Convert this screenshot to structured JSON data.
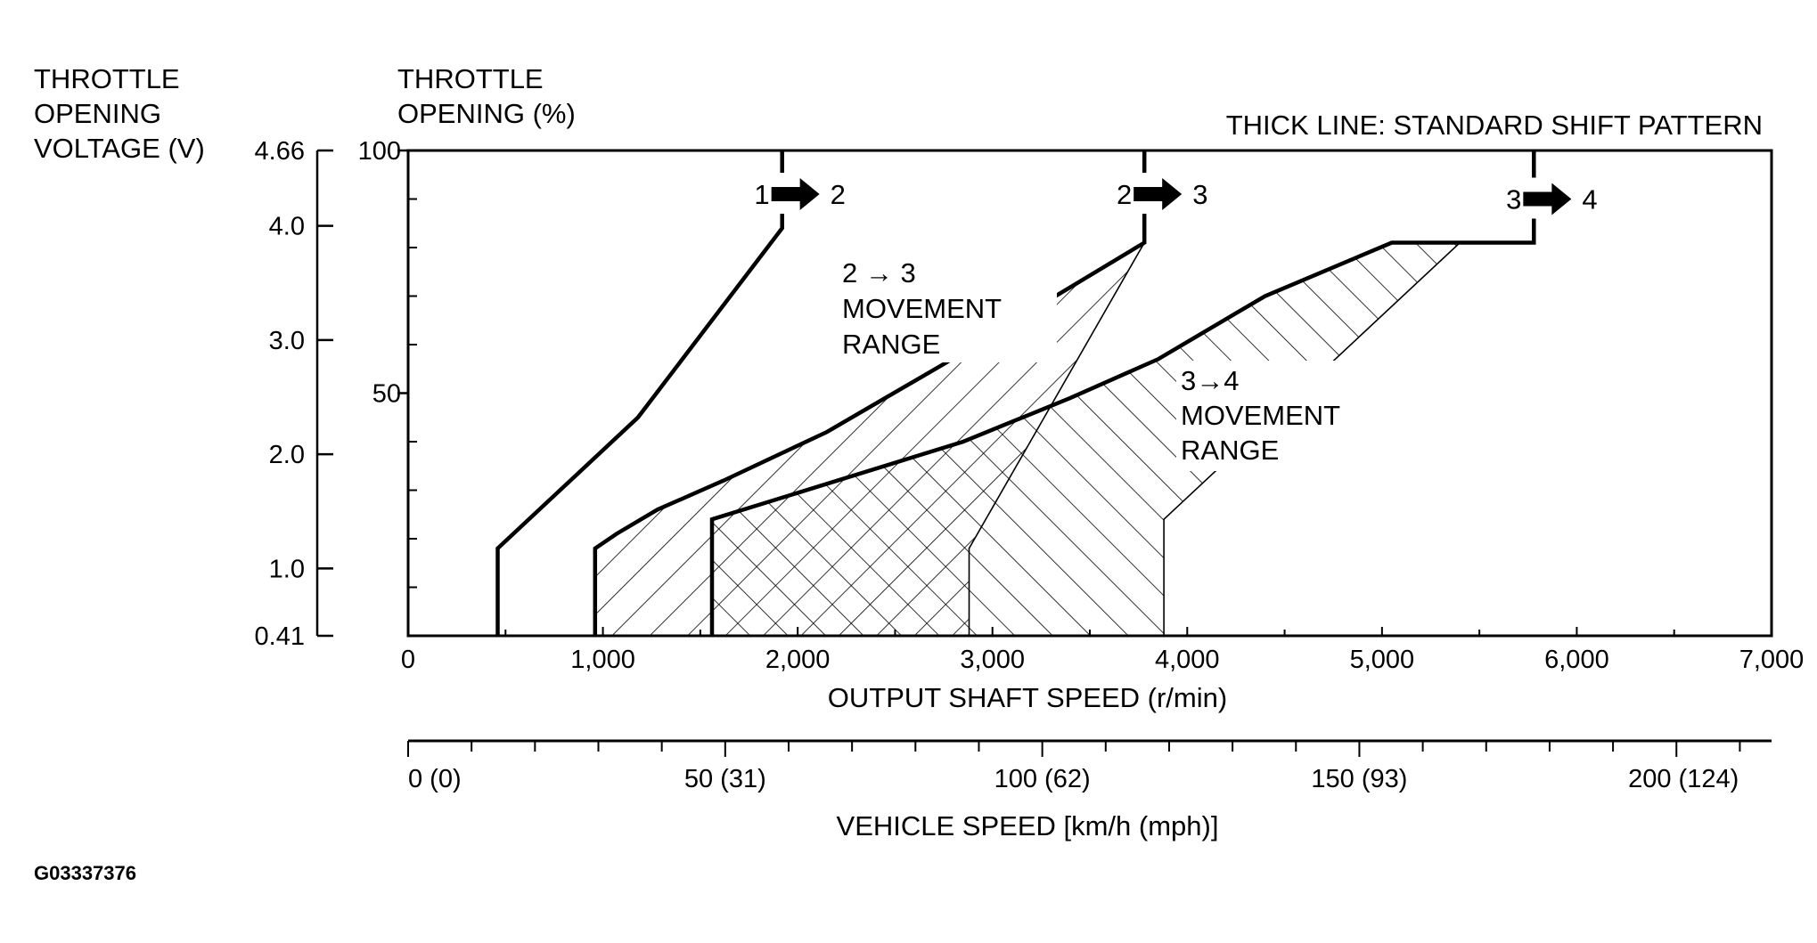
{
  "labels": {
    "voltage_axis": [
      "THROTTLE",
      "OPENING",
      "VOLTAGE (V)"
    ],
    "opening_axis": [
      "THROTTLE",
      "OPENING (%)"
    ],
    "legend_note": "THICK LINE: STANDARD SHIFT PATTERN",
    "x_axis_title": "OUTPUT SHAFT SPEED (r/min)",
    "speed_axis_title": "VEHICLE SPEED [km/h (mph)]",
    "figure_id": "G03337376",
    "range_2_3": [
      "2 → 3",
      "MOVEMENT",
      "RANGE"
    ],
    "range_3_4": [
      "3→4",
      "MOVEMENT",
      "RANGE"
    ]
  },
  "chart_data": {
    "type": "line",
    "title": "",
    "xlabel": "OUTPUT SHAFT SPEED (r/min)",
    "ylabel": "THROTTLE OPENING (%)",
    "xlim": [
      0,
      7000
    ],
    "ylim": [
      0,
      100
    ],
    "x_ticks": [
      {
        "value": 0,
        "label": "0"
      },
      {
        "value": 1000,
        "label": "1,000"
      },
      {
        "value": 2000,
        "label": "2,000"
      },
      {
        "value": 3000,
        "label": "3,000"
      },
      {
        "value": 4000,
        "label": "4,000"
      },
      {
        "value": 5000,
        "label": "5,000"
      },
      {
        "value": 6000,
        "label": "6,000"
      },
      {
        "value": 7000,
        "label": "7,000"
      }
    ],
    "x_minor_step": 500,
    "y_ticks": [
      {
        "value": 50,
        "label": "50"
      },
      {
        "value": 100,
        "label": "100"
      }
    ],
    "y_minor_step": 10,
    "voltage_axis": {
      "label": "THROTTLE OPENING VOLTAGE (V)",
      "range": [
        0.41,
        4.66
      ],
      "ticks": [
        {
          "value": 0.41,
          "label": "0.41"
        },
        {
          "value": 1.0,
          "label": "1.0"
        },
        {
          "value": 2.0,
          "label": "2.0"
        },
        {
          "value": 3.0,
          "label": "3.0"
        },
        {
          "value": 4.0,
          "label": "4.0"
        },
        {
          "value": 4.66,
          "label": "4.66"
        }
      ]
    },
    "vehicle_speed_axis": {
      "label": "VEHICLE SPEED [km/h (mph)]",
      "range": [
        0,
        215
      ],
      "ticks": [
        {
          "value": 0,
          "label": "0 (0)"
        },
        {
          "value": 50,
          "label": "50 (31)"
        },
        {
          "value": 100,
          "label": "100 (62)"
        },
        {
          "value": 150,
          "label": "150 (93)"
        },
        {
          "value": 200,
          "label": "200 (124)"
        }
      ],
      "minor_step": 10
    },
    "series": [
      {
        "name": "1 → 2",
        "x": [
          460,
          460,
          1180,
          1920,
          1920
        ],
        "y": [
          0,
          18,
          45,
          84,
          100
        ],
        "shift_label": {
          "from": "1",
          "to": "2",
          "y": 91
        }
      },
      {
        "name": "2 → 3",
        "x": [
          960,
          960,
          1070,
          1280,
          1620,
          2150,
          2750,
          3200,
          3780,
          3780
        ],
        "y": [
          0,
          18,
          21,
          26,
          32,
          42,
          56,
          67,
          81,
          100
        ],
        "shift_label": {
          "from": "2",
          "to": "3",
          "y": 91
        }
      },
      {
        "name": "3 → 4",
        "x": [
          1560,
          1560,
          2850,
          3400,
          3850,
          4400,
          5050,
          5780,
          5780
        ],
        "y": [
          0,
          24,
          40,
          49,
          57,
          70,
          81,
          81,
          100
        ],
        "shift_label": {
          "from": "3",
          "to": "4",
          "y": 90
        }
      }
    ],
    "ranges": [
      {
        "name": "2 → 3 MOVEMENT RANGE",
        "upper": {
          "x": [
            960,
            960,
            1070,
            1280,
            1620,
            2150,
            2750,
            3200,
            3780
          ],
          "y": [
            0,
            18,
            21,
            26,
            32,
            42,
            56,
            67,
            81
          ]
        },
        "lower": {
          "x": [
            2880,
            2880,
            3780
          ],
          "y": [
            0,
            18,
            81
          ]
        }
      },
      {
        "name": "3→4 MOVEMENT RANGE",
        "upper": {
          "x": [
            1560,
            2850,
            3400,
            3850,
            4400,
            5050,
            5780
          ],
          "y": [
            24,
            40,
            49,
            57,
            70,
            81,
            81
          ]
        },
        "lower": {
          "x": [
            3880,
            3880,
            5400,
            5780
          ],
          "y": [
            0,
            24,
            81,
            81
          ]
        }
      }
    ],
    "grid": false,
    "legend": "top-right"
  }
}
